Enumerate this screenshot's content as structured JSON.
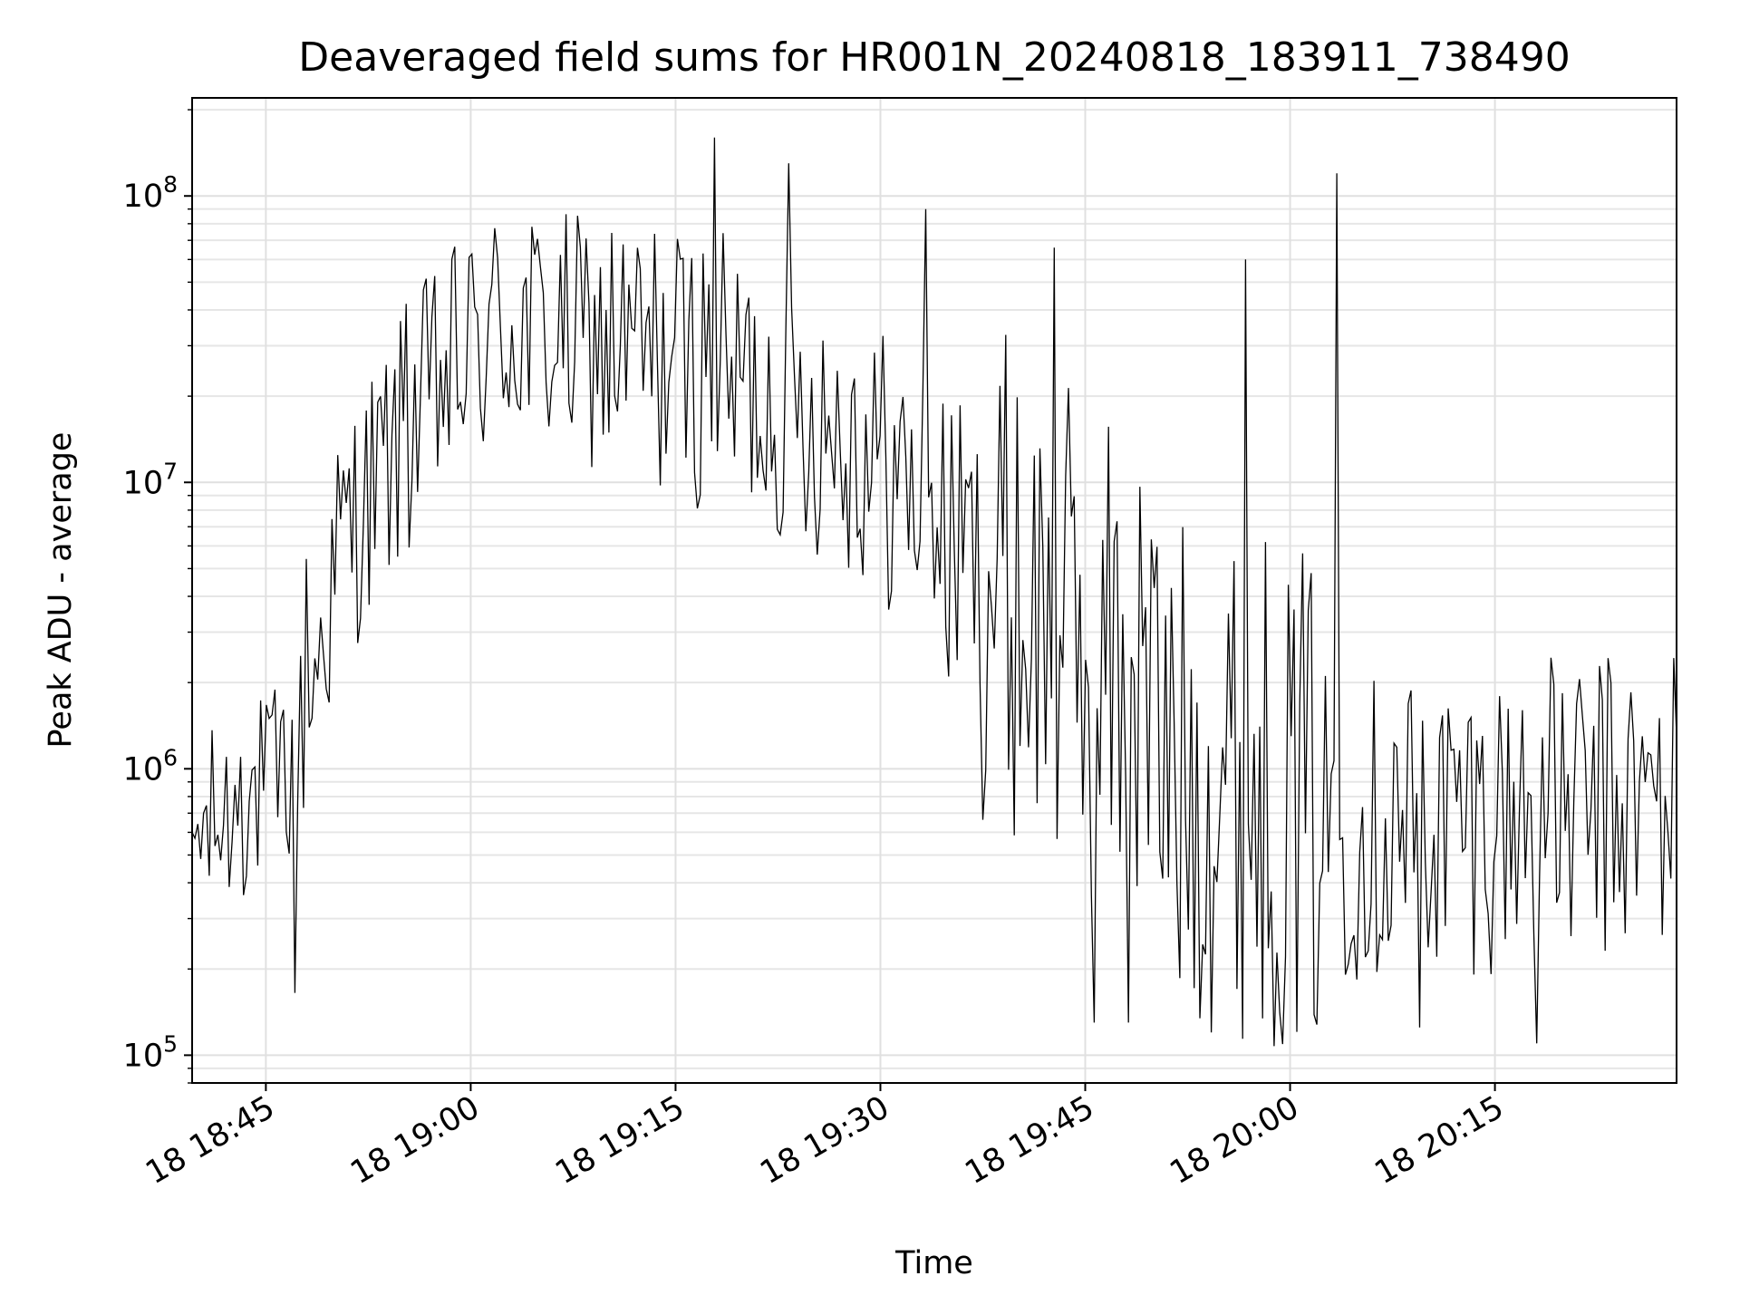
{
  "chart_data": {
    "type": "line",
    "title": "Deaveraged field sums for HR001N_20240818_183911_738490",
    "xlabel": "Time",
    "ylabel": "Peak ADU - average",
    "yscale": "log",
    "ylim": [
      80000,
      220000000
    ],
    "xlim": [
      "2024-08-18 18:39:36",
      "2024-08-18 20:28:18"
    ],
    "grid": true,
    "line_color": "#000000",
    "x_ticks": [
      {
        "value": "2024-08-18 18:45",
        "label": "18 18:45"
      },
      {
        "value": "2024-08-18 19:00",
        "label": "18 19:00"
      },
      {
        "value": "2024-08-18 19:15",
        "label": "18 19:15"
      },
      {
        "value": "2024-08-18 19:30",
        "label": "18 19:30"
      },
      {
        "value": "2024-08-18 19:45",
        "label": "18 19:45"
      },
      {
        "value": "2024-08-18 20:00",
        "label": "18 20:00"
      },
      {
        "value": "2024-08-18 20:15",
        "label": "18 20:15"
      }
    ],
    "y_ticks": [
      {
        "value": 100000,
        "base": "10",
        "exp": "5"
      },
      {
        "value": 1000000,
        "base": "10",
        "exp": "6"
      },
      {
        "value": 10000000,
        "base": "10",
        "exp": "7"
      },
      {
        "value": 100000000,
        "base": "10",
        "exp": "8"
      }
    ],
    "series": [
      {
        "x_start": "2024-08-18 18:39:36",
        "x_end": "2024-08-18 20:28:18",
        "key_points": [
          {
            "time": "2024-08-18 18:39:36",
            "value": 600000
          },
          {
            "time": "2024-08-18 18:43:15",
            "value": 1100000
          },
          {
            "time": "2024-08-18 18:47:05",
            "value": 165000
          },
          {
            "time": "2024-08-18 18:48:00",
            "value": 5400000
          },
          {
            "time": "2024-08-18 18:55:20",
            "value": 42000000
          },
          {
            "time": "2024-08-18 19:10:00",
            "value": 40000000
          },
          {
            "time": "2024-08-18 19:17:45",
            "value": 160000000
          },
          {
            "time": "2024-08-18 19:23:15",
            "value": 130000000
          },
          {
            "time": "2024-08-18 19:33:25",
            "value": 90000000
          },
          {
            "time": "2024-08-18 19:35:00",
            "value": 2100000
          },
          {
            "time": "2024-08-18 19:42:40",
            "value": 66000000
          },
          {
            "time": "2024-08-18 19:45:35",
            "value": 130000
          },
          {
            "time": "2024-08-18 19:48:10",
            "value": 130000
          },
          {
            "time": "2024-08-18 19:56:40",
            "value": 60000000
          },
          {
            "time": "2024-08-18 20:00:00",
            "value": 1300000
          },
          {
            "time": "2024-08-18 20:03:30",
            "value": 120000000
          },
          {
            "time": "2024-08-18 20:09:30",
            "value": 125000
          },
          {
            "time": "2024-08-18 20:18:00",
            "value": 110000
          },
          {
            "time": "2024-08-18 20:28:18",
            "value": 1300000
          }
        ]
      }
    ]
  }
}
